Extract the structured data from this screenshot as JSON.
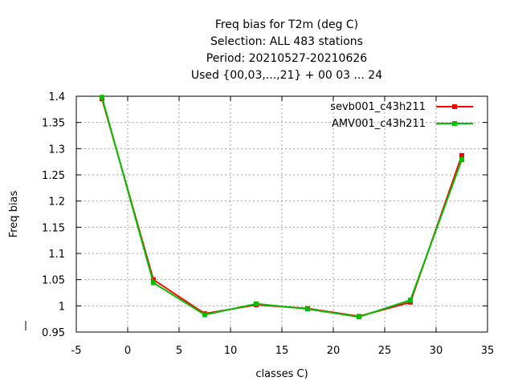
{
  "chart_data": {
    "type": "line",
    "title_lines": [
      "Freq bias  for T2m (deg C)",
      "Selection: ALL    483 stations",
      "Period: 20210527-20210626",
      "Used {00,03,...,21} + 00 03 ... 24"
    ],
    "xlabel": "classes C)",
    "ylabel": "Freq bias",
    "xlim": [
      -5,
      35
    ],
    "ylim": [
      0.95,
      1.4
    ],
    "xticks": [
      -5,
      0,
      5,
      10,
      15,
      20,
      25,
      30,
      35
    ],
    "xtick_labels": [
      "-5",
      "0",
      "5",
      "10",
      "15",
      "20",
      "25",
      "30",
      "35"
    ],
    "yticks": [
      0.95,
      1,
      1.05,
      1.1,
      1.15,
      1.2,
      1.25,
      1.3,
      1.35,
      1.4
    ],
    "ytick_labels": [
      "0.95",
      "1",
      "1.05",
      "1.1",
      "1.15",
      "1.2",
      "1.25",
      "1.3",
      "1.35",
      "1.4"
    ],
    "grid": true,
    "legend_position": "top-right",
    "series": [
      {
        "name": "sevb001_c43h211",
        "color": "#ff0000",
        "x": [
          -2.5,
          2.5,
          7.5,
          12.5,
          17.5,
          22.5,
          27.5,
          32.5
        ],
        "y": [
          1.395,
          1.05,
          0.985,
          1.002,
          0.995,
          0.98,
          1.007,
          1.287
        ]
      },
      {
        "name": "AMV001_c43h211",
        "color": "#00c000",
        "x": [
          -2.5,
          2.5,
          7.5,
          12.5,
          17.5,
          22.5,
          27.5,
          32.5
        ],
        "y": [
          1.398,
          1.044,
          0.983,
          1.004,
          0.994,
          0.979,
          1.011,
          1.279
        ]
      }
    ]
  }
}
